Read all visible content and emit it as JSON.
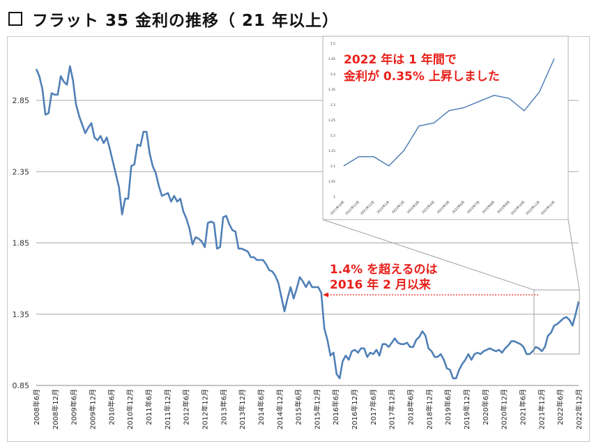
{
  "page": {
    "title": "フラット 35 金利の推移（ 21 年以上）"
  },
  "colors": {
    "line": "#4f7fb6",
    "annotation": "#e8201a",
    "grid": "#a8a8a8"
  },
  "chart_data": [
    {
      "type": "line",
      "title": "",
      "xlabel": "",
      "ylabel": "",
      "ylim": [
        0.85,
        3.3
      ],
      "yticks": [
        0.85,
        1.35,
        1.85,
        2.35,
        2.85
      ],
      "ytick_labels": [
        "0.85",
        "1.35",
        "1.85",
        "2.35",
        "2.85"
      ],
      "grid": true,
      "x_labels": [
        "2008年6月",
        "2008年12月",
        "2009年6月",
        "2009年12月",
        "2010年6月",
        "2010年12月",
        "2011年6月",
        "2011年12月",
        "2012年6月",
        "2012年12月",
        "2013年6月",
        "2013年12月",
        "2014年6月",
        "2014年12月",
        "2015年6月",
        "2015年12月",
        "2016年6月",
        "2016年12月",
        "2017年6月",
        "2017年12月",
        "2018年6月",
        "2018年12月",
        "2019年6月",
        "2019年12月",
        "2020年6月",
        "2020年12月",
        "2021年6月",
        "2021年12月",
        "2022年6月",
        "2022年12月"
      ],
      "series": [
        {
          "values": [
            3.07,
            3.02,
            2.93,
            2.75,
            2.76,
            2.9,
            2.89,
            2.89,
            3.02,
            2.98,
            2.96,
            3.09,
            2.99,
            2.82,
            2.74,
            2.68,
            2.62,
            2.66,
            2.69,
            2.59,
            2.57,
            2.6,
            2.55,
            2.59,
            2.51,
            2.42,
            2.33,
            2.24,
            2.05,
            2.16,
            2.16,
            2.39,
            2.4,
            2.54,
            2.53,
            2.63,
            2.63,
            2.48,
            2.39,
            2.34,
            2.25,
            2.18,
            2.19,
            2.2,
            2.14,
            2.18,
            2.14,
            2.16,
            2.07,
            2.02,
            1.95,
            1.84,
            1.89,
            1.88,
            1.86,
            1.82,
            1.99,
            2.0,
            1.99,
            1.81,
            1.82,
            2.03,
            2.04,
            1.98,
            1.94,
            1.93,
            1.81,
            1.81,
            1.8,
            1.79,
            1.75,
            1.75,
            1.73,
            1.73,
            1.73,
            1.7,
            1.66,
            1.65,
            1.62,
            1.57,
            1.47,
            1.37,
            1.46,
            1.54,
            1.46,
            1.53,
            1.61,
            1.58,
            1.54,
            1.58,
            1.54,
            1.54,
            1.54,
            1.5,
            1.25,
            1.17,
            1.06,
            1.08,
            0.93,
            0.9,
            1.02,
            1.06,
            1.03,
            1.09,
            1.1,
            1.08,
            1.11,
            1.11,
            1.05,
            1.08,
            1.07,
            1.1,
            1.06,
            1.14,
            1.14,
            1.12,
            1.15,
            1.18,
            1.15,
            1.14,
            1.14,
            1.15,
            1.12,
            1.12,
            1.17,
            1.19,
            1.23,
            1.2,
            1.11,
            1.09,
            1.05,
            1.05,
            1.07,
            1.03,
            0.97,
            0.96,
            0.9,
            0.9,
            0.96,
            1.0,
            1.03,
            1.07,
            1.03,
            1.07,
            1.08,
            1.07,
            1.09,
            1.1,
            1.11,
            1.1,
            1.09,
            1.1,
            1.08,
            1.11,
            1.13,
            1.16,
            1.16,
            1.15,
            1.14,
            1.12,
            1.07,
            1.07,
            1.09,
            1.12,
            1.11,
            1.09,
            1.12,
            1.2,
            1.22,
            1.27,
            1.28,
            1.3,
            1.32,
            1.33,
            1.31,
            1.27,
            1.35,
            1.44
          ]
        }
      ],
      "annotations": [
        {
          "lines": [
            "1.4% を超えるのは",
            "2016 年 2 月以来"
          ]
        }
      ]
    },
    {
      "type": "line",
      "title": "",
      "xlabel": "",
      "ylabel": "",
      "ylim": [
        1.0,
        1.5
      ],
      "yticks": [
        1.0,
        1.05,
        1.1,
        1.15,
        1.2,
        1.25,
        1.3,
        1.35,
        1.4,
        1.45,
        1.5
      ],
      "ytick_labels": [
        "1",
        "1.05",
        "1.1",
        "1.15",
        "1.2",
        "1.25",
        "1.3",
        "1.35",
        "1.4",
        "1.45",
        "1.5"
      ],
      "grid": false,
      "categories": [
        "2021年10月",
        "2021年11月",
        "2021年12月",
        "2022年1月",
        "2022年2月",
        "2022年3月",
        "2022年4月",
        "2022年5月",
        "2022年6月",
        "2022年7月",
        "2022年8月",
        "2022年9月",
        "2022年10月",
        "2022年11月",
        "2022年12月"
      ],
      "values": [
        1.1,
        1.13,
        1.13,
        1.1,
        1.15,
        1.23,
        1.24,
        1.28,
        1.29,
        1.31,
        1.33,
        1.32,
        1.28,
        1.34,
        1.45
      ],
      "annotations": [
        {
          "lines": [
            "2022 年は 1 年間で",
            "金利が 0.35% 上昇しました"
          ]
        }
      ]
    }
  ]
}
